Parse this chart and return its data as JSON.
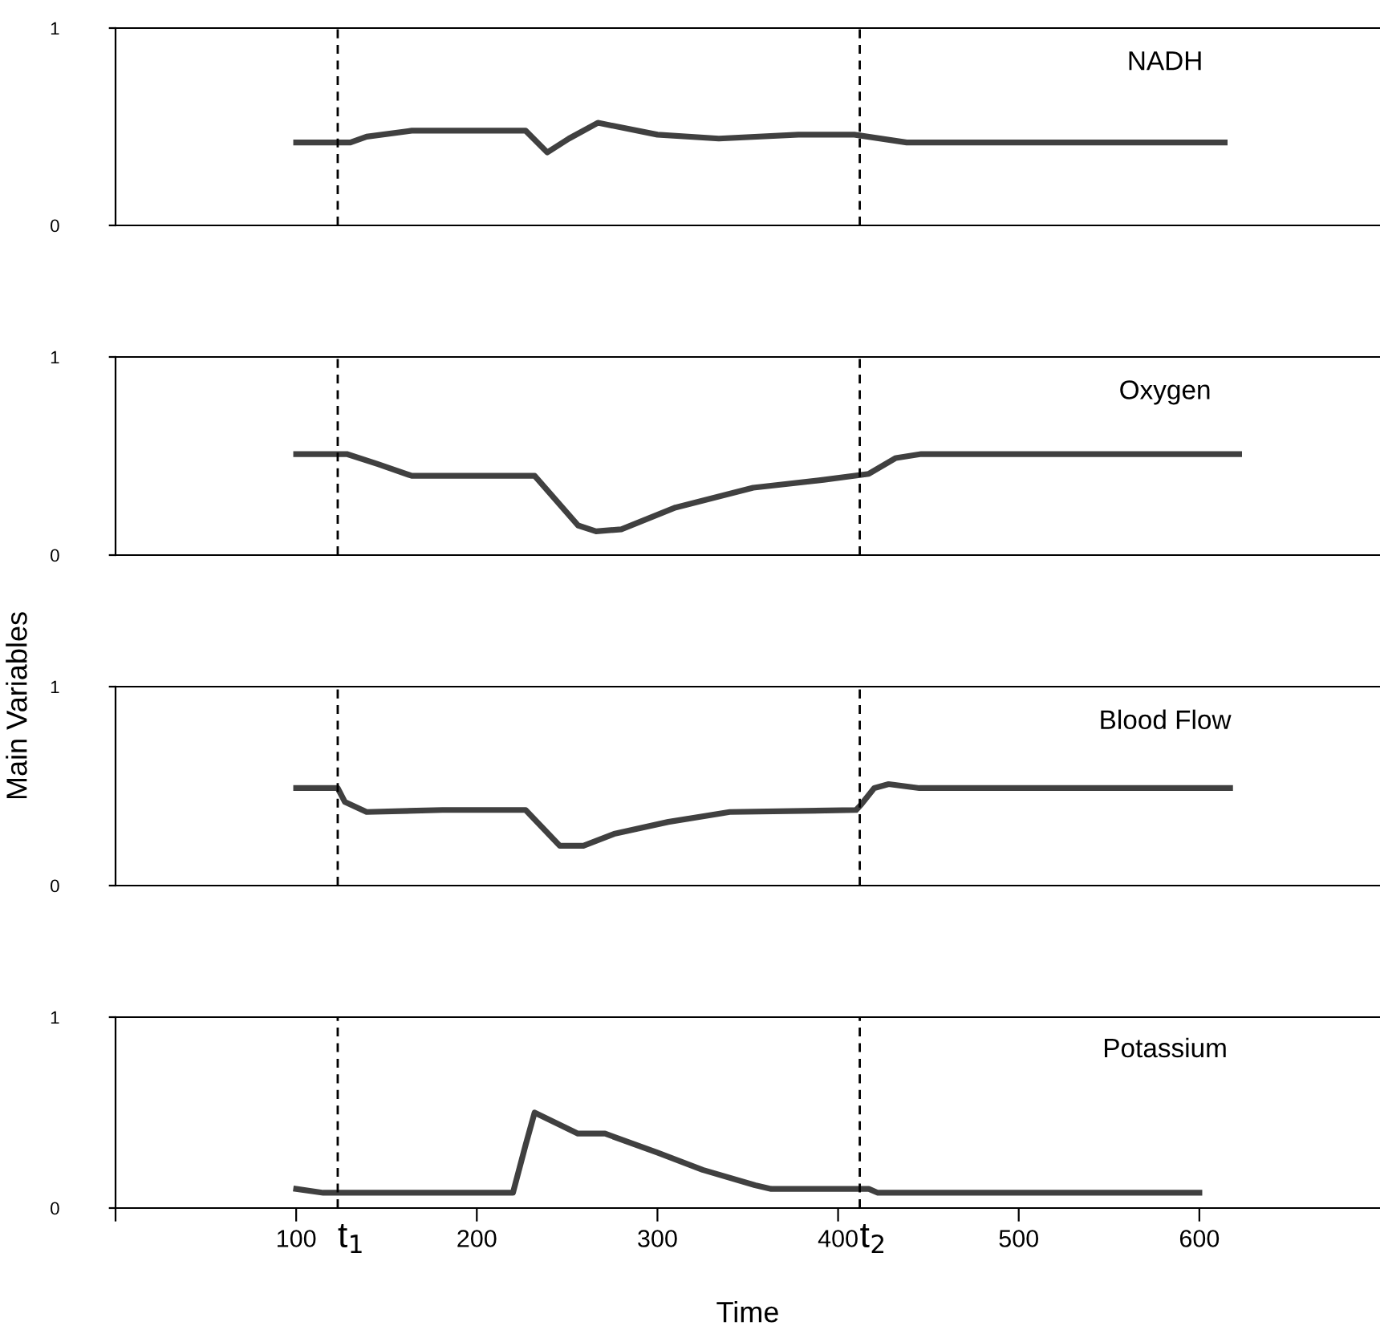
{
  "chart_data": [
    {
      "type": "line",
      "xlim": [
        0,
        700
      ],
      "ylim": [
        0,
        1
      ],
      "yticks": [
        0,
        1
      ],
      "tick_labels": "y",
      "grid": false,
      "marker": "none",
      "line_style": "solid",
      "ref_lines": [
        {
          "axis": "x",
          "value": 123,
          "line_style": "dashed",
          "color": "#000000"
        },
        {
          "axis": "x",
          "value": 412,
          "line_style": "dashed",
          "color": "#000000"
        }
      ],
      "title": "NADH",
      "series": [
        {
          "color": "#404040",
          "x": [
            100,
            130,
            139,
            164,
            227,
            239,
            251,
            267,
            300,
            334,
            378,
            409,
            438,
            614
          ],
          "values": [
            0.42,
            0.42,
            0.45,
            0.48,
            0.48,
            0.37,
            0.44,
            0.52,
            0.46,
            0.44,
            0.46,
            0.46,
            0.42,
            0.42
          ]
        }
      ]
    },
    {
      "type": "line",
      "xlim": [
        0,
        700
      ],
      "ylim": [
        0,
        1
      ],
      "yticks": [
        0,
        1
      ],
      "tick_labels": "y",
      "grid": false,
      "marker": "none",
      "line_style": "solid",
      "ylabel": "Main Variables",
      "ref_lines": [
        {
          "axis": "x",
          "value": 123,
          "line_style": "dashed",
          "color": "#000000"
        },
        {
          "axis": "x",
          "value": 412,
          "line_style": "dashed",
          "color": "#000000"
        }
      ],
      "title": "Oxygen",
      "series": [
        {
          "color": "#404040",
          "x": [
            100,
            128,
            145,
            164,
            232,
            256,
            266,
            280,
            310,
            353,
            392,
            417,
            432,
            446,
            622
          ],
          "values": [
            0.51,
            0.51,
            0.46,
            0.4,
            0.4,
            0.15,
            0.12,
            0.13,
            0.24,
            0.34,
            0.38,
            0.41,
            0.49,
            0.51,
            0.51
          ]
        }
      ]
    },
    {
      "type": "line",
      "xlim": [
        0,
        700
      ],
      "ylim": [
        0,
        1
      ],
      "yticks": [
        0,
        1
      ],
      "tick_labels": "y",
      "grid": false,
      "marker": "none",
      "line_style": "solid",
      "ref_lines": [
        {
          "axis": "x",
          "value": 123,
          "line_style": "dashed",
          "color": "#000000"
        },
        {
          "axis": "x",
          "value": 412,
          "line_style": "dashed",
          "color": "#000000"
        }
      ],
      "title": "Blood Flow",
      "series": [
        {
          "color": "#404040",
          "x": [
            100,
            123,
            127,
            139,
            181,
            227,
            246,
            259,
            276,
            306,
            340,
            410,
            413,
            420,
            428,
            445,
            617
          ],
          "values": [
            0.49,
            0.49,
            0.42,
            0.37,
            0.38,
            0.38,
            0.2,
            0.2,
            0.26,
            0.32,
            0.37,
            0.38,
            0.41,
            0.49,
            0.51,
            0.49,
            0.49
          ]
        }
      ]
    },
    {
      "type": "line",
      "xlim": [
        0,
        700
      ],
      "ylim": [
        0,
        1
      ],
      "yticks": [
        0,
        1
      ],
      "grid": false,
      "marker": "none",
      "line_style": "solid",
      "xlabel": "Time",
      "xticks": [
        {
          "value": 0,
          "label": null
        },
        100,
        200,
        300,
        400,
        500,
        600
      ],
      "ref_lines": [
        {
          "axis": "x",
          "value": 123,
          "line_style": "dashed",
          "color": "#000000",
          "label": "t$_{1}$"
        },
        {
          "axis": "x",
          "value": 412,
          "line_style": "dashed",
          "color": "#000000",
          "label": "t$_{2}$"
        }
      ],
      "title": "Potassium",
      "series": [
        {
          "color": "#404040",
          "x": [
            100,
            115,
            220,
            227,
            232,
            256,
            271,
            300,
            325,
            354,
            363,
            417,
            422,
            600
          ],
          "values": [
            0.1,
            0.08,
            0.08,
            0.33,
            0.5,
            0.39,
            0.39,
            0.29,
            0.2,
            0.12,
            0.1,
            0.1,
            0.08,
            0.08
          ]
        }
      ]
    }
  ]
}
